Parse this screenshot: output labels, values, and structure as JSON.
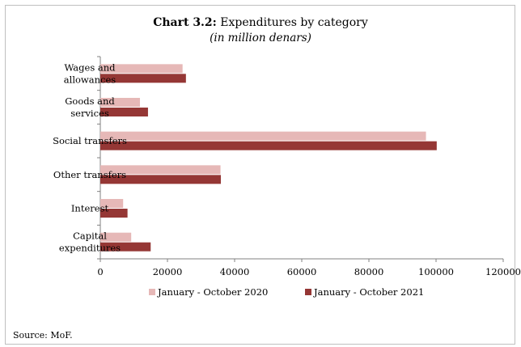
{
  "chart_data": {
    "type": "bar",
    "orientation": "horizontal",
    "title_bold": "Chart 3.2:",
    "title": "Expenditures by category",
    "subtitle": "(in million denars)",
    "categories": [
      [
        "Wages and",
        "allowances"
      ],
      [
        "Goods and",
        "services"
      ],
      [
        "Social transfers"
      ],
      [
        "Other transfers"
      ],
      [
        "Interest"
      ],
      [
        "Capital",
        "expenditures"
      ]
    ],
    "series": [
      {
        "name": "January - October 2020",
        "color": "#e6b8b7",
        "values": [
          24500,
          11800,
          97000,
          35800,
          6800,
          9200
        ]
      },
      {
        "name": "January - October 2021",
        "color": "#953735",
        "values": [
          25500,
          14200,
          100200,
          35900,
          8100,
          15000
        ]
      }
    ],
    "xlim": [
      0,
      120000
    ],
    "xticks": [
      0,
      20000,
      40000,
      60000,
      80000,
      100000,
      120000
    ],
    "xtick_labels": [
      "0",
      "20000",
      "40000",
      "60000",
      "80000",
      "100000",
      "120000"
    ],
    "grid": false,
    "legend_position": "bottom",
    "source": "Source: MoF."
  }
}
